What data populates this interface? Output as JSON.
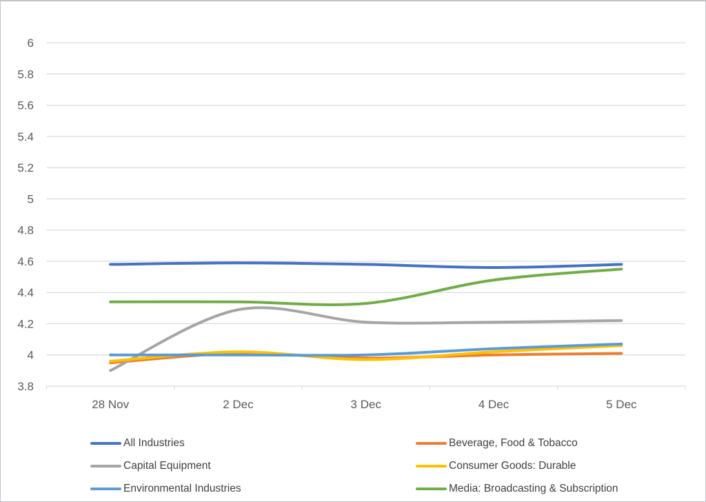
{
  "frame": {
    "background": "#ffffff",
    "border_color": "#c2c2cc"
  },
  "chart_data": {
    "type": "line",
    "smooth": true,
    "title": "",
    "xlabel": "",
    "ylabel": "",
    "grid": true,
    "legend_position": "bottom",
    "categories": [
      "28 Nov",
      "2 Dec",
      "3 Dec",
      "4 Dec",
      "5 Dec"
    ],
    "series": [
      {
        "name": "All Industries",
        "color": "#4472C4",
        "values": [
          4.58,
          4.59,
          4.58,
          4.56,
          4.58
        ]
      },
      {
        "name": "Beverage, Food & Tobacco",
        "color": "#ED7D31",
        "values": [
          3.95,
          4.01,
          3.98,
          4.0,
          4.01
        ]
      },
      {
        "name": "Capital Equipment",
        "color": "#A5A5A5",
        "values": [
          3.9,
          4.29,
          4.21,
          4.21,
          4.22
        ]
      },
      {
        "name": "Consumer Goods: Durable",
        "color": "#FFC000",
        "values": [
          3.96,
          4.02,
          3.97,
          4.02,
          4.06
        ]
      },
      {
        "name": "Environmental Industries",
        "color": "#5B9BD5",
        "values": [
          4.0,
          4.0,
          4.0,
          4.04,
          4.07
        ]
      },
      {
        "name": "Media: Broadcasting & Subscription",
        "color": "#70AD47",
        "values": [
          4.34,
          4.34,
          4.33,
          4.48,
          4.55
        ]
      }
    ],
    "y_axis": {
      "min": 3.8,
      "max": 6.0,
      "step": 0.2,
      "tick_labels": [
        "6",
        "5.8",
        "5.6",
        "5.4",
        "5.2",
        "5",
        "4.8",
        "4.6",
        "4.4",
        "4.2",
        "4",
        "3.8"
      ]
    },
    "colors": {
      "gridline": "#D9D9D9",
      "axis_line": "#D9D9D9",
      "axis_text": "#595959",
      "legend_text": "#404040"
    }
  }
}
